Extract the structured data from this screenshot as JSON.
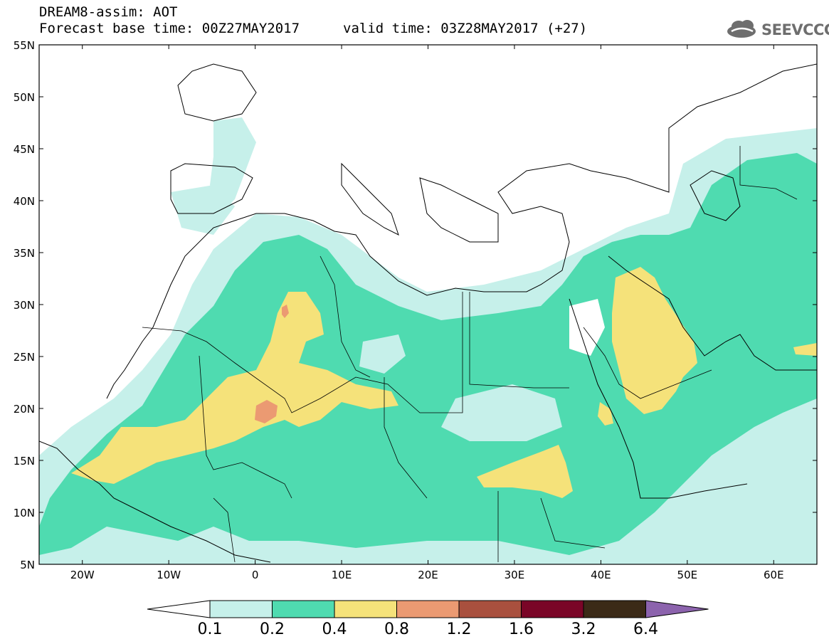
{
  "header": {
    "title": "DREAM8-assim: AOT",
    "base_time": "Forecast base time: 00Z27MAY2017",
    "valid_time": "valid time: 03Z28MAY2017 (+27)",
    "logo_text": "SEEVCCC"
  },
  "map": {
    "lat_labels": [
      "55N",
      "50N",
      "45N",
      "40N",
      "35N",
      "30N",
      "25N",
      "20N",
      "15N",
      "10N",
      "5N"
    ],
    "lon_labels": [
      "20W",
      "10W",
      "0",
      "10E",
      "20E",
      "30E",
      "40E",
      "50E",
      "60E"
    ],
    "lon_range": [
      -25,
      65
    ],
    "lat_range": [
      5,
      55
    ]
  },
  "colorbar": {
    "labels": [
      "0.1",
      "0.2",
      "0.4",
      "0.8",
      "1.2",
      "1.6",
      "3.2",
      "6.4"
    ],
    "colors": [
      "#ffffff",
      "#c6f0ea",
      "#4fdbb0",
      "#f5e27a",
      "#eb9a72",
      "#a9503e",
      "#7a0527",
      "#3b2a17",
      "#8c63ad"
    ]
  }
}
